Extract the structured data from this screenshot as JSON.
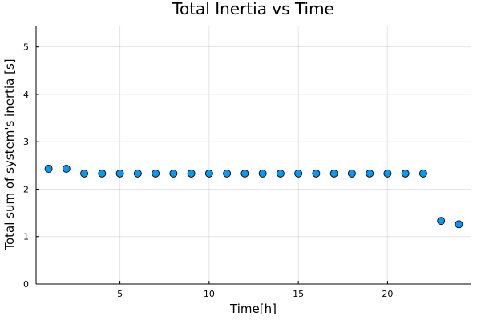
{
  "chart_data": {
    "type": "scatter",
    "title": "Total Inertia vs Time",
    "xlabel": "Time[h]",
    "ylabel": "Total sum of system's inertia [s]",
    "xlim": [
      0.3,
      24.7
    ],
    "ylim": [
      0,
      5.45
    ],
    "xticks": [
      5,
      10,
      15,
      20
    ],
    "yticks": [
      0,
      1,
      2,
      3,
      4,
      5
    ],
    "grid": true,
    "legend": "none",
    "marker_color": "#009AFA",
    "marker_edge_color": "#000000",
    "series": [
      {
        "x": [
          1,
          2,
          3,
          4,
          5,
          6,
          7,
          8,
          9,
          10,
          11,
          12,
          13,
          14,
          15,
          16,
          17,
          18,
          19,
          20,
          21,
          22,
          23,
          24
        ],
        "y": [
          2.43,
          2.43,
          2.33,
          2.33,
          2.33,
          2.33,
          2.33,
          2.33,
          2.33,
          2.33,
          2.33,
          2.33,
          2.33,
          2.33,
          2.33,
          2.33,
          2.33,
          2.33,
          2.33,
          2.33,
          2.33,
          2.33,
          1.33,
          1.26
        ]
      }
    ]
  }
}
